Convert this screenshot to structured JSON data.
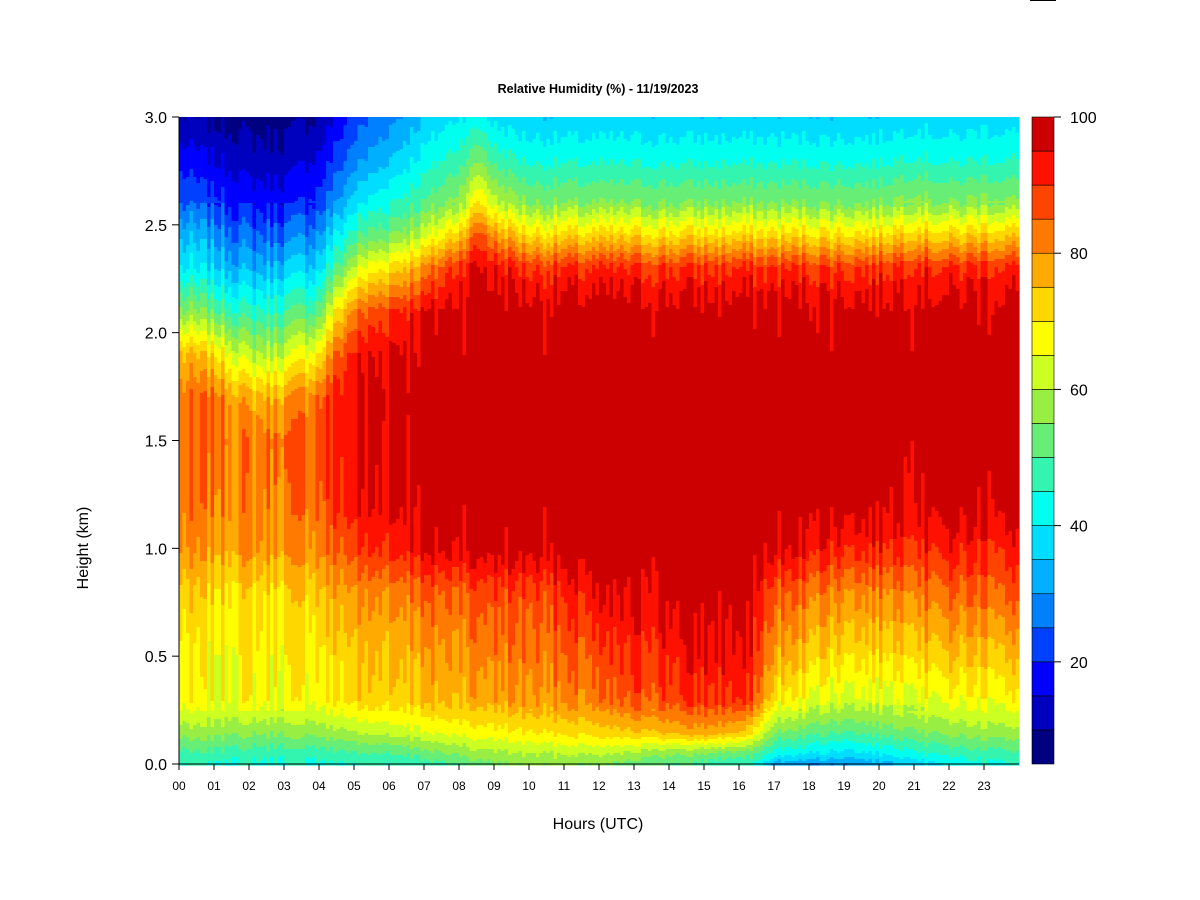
{
  "chart_data": {
    "type": "heatmap",
    "title": "Relative Humidity (%) - 11/19/2023",
    "xlabel": "Hours (UTC)",
    "ylabel": "Height (km)",
    "xlim": [
      0,
      24
    ],
    "ylim": [
      0,
      3.0
    ],
    "x_tick_labels": [
      "00",
      "01",
      "02",
      "03",
      "04",
      "05",
      "06",
      "07",
      "08",
      "09",
      "10",
      "11",
      "12",
      "13",
      "14",
      "15",
      "16",
      "17",
      "18",
      "19",
      "20",
      "21",
      "22",
      "23"
    ],
    "y_tick_labels": [
      "0.0",
      "0.5",
      "1.0",
      "1.5",
      "2.0",
      "2.5",
      "3.0"
    ],
    "y_tick_values": [
      0,
      0.5,
      1.0,
      1.5,
      2.0,
      2.5,
      3.0
    ],
    "colorbar": {
      "range": [
        5,
        100
      ],
      "tick_labels": [
        "20",
        "40",
        "60",
        "80",
        "100"
      ],
      "tick_values": [
        20,
        40,
        60,
        80,
        100
      ],
      "levels": [
        5,
        10,
        15,
        20,
        25,
        30,
        35,
        40,
        45,
        50,
        55,
        60,
        65,
        70,
        75,
        80,
        85,
        90,
        95,
        100
      ],
      "colors": [
        "#000080",
        "#0000bf",
        "#0000ff",
        "#0040ff",
        "#0080ff",
        "#00b0ff",
        "#00ddff",
        "#00ffee",
        "#33f5b0",
        "#66ee77",
        "#99ee44",
        "#ccff22",
        "#ffff00",
        "#ffd700",
        "#ffaa00",
        "#ff7a00",
        "#ff4400",
        "#ff1100",
        "#cc0000",
        "#800000"
      ]
    },
    "profile_heights_km": [
      0.0,
      0.05,
      0.15,
      0.3,
      0.5,
      0.8,
      1.0,
      1.2,
      1.5,
      1.7,
      1.9,
      2.1,
      2.3,
      2.45,
      2.6,
      2.8,
      3.0
    ],
    "profile_times_hours": [
      0,
      1,
      2,
      3,
      4,
      4.5,
      5,
      6,
      7,
      8,
      8.6,
      9,
      10,
      11,
      12,
      13,
      14,
      15,
      16,
      16.5,
      17,
      18,
      19,
      20,
      21,
      22,
      23,
      24
    ],
    "rh_values": [
      [
        45,
        48,
        57,
        68,
        68,
        73,
        80,
        82,
        82,
        82,
        76,
        56,
        40,
        34,
        25,
        18,
        10
      ],
      [
        45,
        48,
        57,
        66,
        67,
        72,
        78,
        82,
        84,
        84,
        72,
        52,
        37,
        30,
        22,
        15,
        9
      ],
      [
        44,
        47,
        56,
        68,
        69,
        72,
        80,
        82,
        83,
        76,
        60,
        45,
        32,
        25,
        18,
        12,
        8
      ],
      [
        44,
        47,
        56,
        67,
        68,
        72,
        79,
        82,
        84,
        78,
        62,
        48,
        35,
        26,
        18,
        12,
        8
      ],
      [
        44,
        47,
        57,
        68,
        70,
        75,
        82,
        85,
        86,
        85,
        70,
        52,
        38,
        30,
        22,
        16,
        10
      ],
      [
        44,
        48,
        58,
        70,
        72,
        78,
        85,
        90,
        92,
        92,
        85,
        70,
        50,
        40,
        30,
        22,
        16
      ],
      [
        45,
        49,
        60,
        72,
        74,
        80,
        88,
        93,
        95,
        95,
        92,
        82,
        62,
        48,
        38,
        28,
        22
      ],
      [
        46,
        50,
        62,
        74,
        76,
        82,
        92,
        96,
        97,
        98,
        96,
        90,
        72,
        55,
        45,
        35,
        28
      ],
      [
        47,
        52,
        64,
        75,
        78,
        85,
        95,
        98,
        99,
        99,
        98,
        94,
        80,
        62,
        50,
        42,
        35
      ],
      [
        50,
        56,
        67,
        77,
        80,
        86,
        97,
        99,
        99,
        99,
        99,
        98,
        92,
        75,
        58,
        48,
        40
      ],
      [
        53,
        58,
        68,
        78,
        82,
        88,
        98,
        99,
        99,
        99,
        99,
        99,
        96,
        88,
        72,
        55,
        42
      ],
      [
        54,
        58,
        68,
        78,
        82,
        88,
        98,
        99,
        99,
        99,
        99,
        99,
        94,
        80,
        62,
        48,
        38
      ],
      [
        56,
        60,
        70,
        80,
        83,
        88,
        98,
        99,
        99,
        99,
        99,
        98,
        90,
        72,
        55,
        44,
        36
      ],
      [
        56,
        60,
        71,
        80,
        84,
        90,
        98,
        99,
        99,
        99,
        99,
        98,
        90,
        72,
        55,
        44,
        36
      ],
      [
        54,
        60,
        72,
        82,
        86,
        94,
        99,
        99,
        99,
        99,
        99,
        98,
        90,
        72,
        55,
        44,
        36
      ],
      [
        52,
        58,
        74,
        86,
        90,
        95,
        99,
        99,
        99,
        99,
        99,
        98,
        90,
        72,
        55,
        44,
        36
      ],
      [
        50,
        56,
        76,
        88,
        92,
        98,
        99,
        99,
        99,
        99,
        99,
        98,
        90,
        72,
        55,
        44,
        36
      ],
      [
        48,
        54,
        78,
        90,
        94,
        99,
        99,
        99,
        99,
        99,
        99,
        98,
        90,
        72,
        55,
        44,
        36
      ],
      [
        46,
        52,
        75,
        90,
        94,
        97,
        99,
        99,
        99,
        99,
        99,
        98,
        90,
        72,
        55,
        44,
        36
      ],
      [
        44,
        50,
        68,
        85,
        90,
        95,
        99,
        99,
        99,
        99,
        99,
        98,
        90,
        72,
        55,
        44,
        36
      ],
      [
        32,
        42,
        55,
        70,
        78,
        86,
        96,
        99,
        99,
        99,
        99,
        98,
        90,
        72,
        55,
        44,
        36
      ],
      [
        30,
        40,
        52,
        66,
        74,
        84,
        94,
        99,
        99,
        99,
        99,
        98,
        90,
        72,
        55,
        44,
        36
      ],
      [
        30,
        38,
        50,
        64,
        72,
        82,
        92,
        99,
        99,
        99,
        99,
        98,
        90,
        72,
        55,
        44,
        36
      ],
      [
        32,
        40,
        52,
        64,
        72,
        82,
        92,
        98,
        99,
        99,
        99,
        98,
        90,
        72,
        55,
        44,
        36
      ],
      [
        38,
        44,
        55,
        66,
        74,
        84,
        92,
        98,
        99,
        99,
        99,
        99,
        93,
        76,
        58,
        46,
        38
      ],
      [
        40,
        46,
        56,
        66,
        74,
        84,
        92,
        98,
        99,
        99,
        99,
        98,
        90,
        72,
        55,
        44,
        36
      ],
      [
        44,
        48,
        58,
        68,
        75,
        86,
        92,
        98,
        99,
        99,
        99,
        98,
        92,
        75,
        57,
        45,
        38
      ],
      [
        44,
        48,
        58,
        68,
        75,
        86,
        92,
        98,
        99,
        99,
        99,
        98,
        91,
        74,
        56,
        45,
        37
      ]
    ]
  }
}
